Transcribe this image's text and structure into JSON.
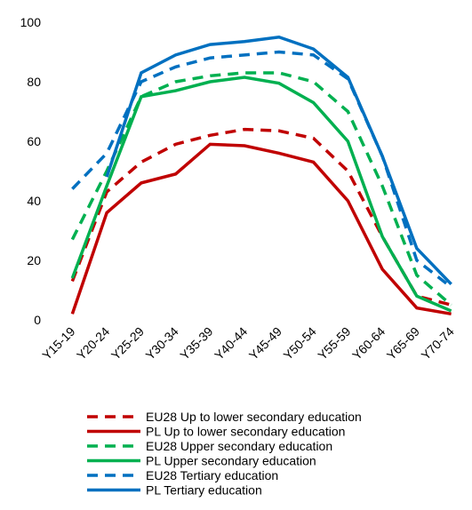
{
  "chart_data": {
    "type": "line",
    "categories": [
      "Y15-19",
      "Y20-24",
      "Y25-29",
      "Y30-34",
      "Y35-39",
      "Y40-44",
      "Y45-49",
      "Y50-54",
      "Y55-59",
      "Y60-64",
      "Y65-69",
      "Y70-74"
    ],
    "ylim": [
      0,
      100
    ],
    "yticks": [
      0,
      20,
      40,
      60,
      80,
      100
    ],
    "grid": false,
    "series": [
      {
        "name": "EU28 Up to lower secondary education",
        "color": "#c00000",
        "dashed": true,
        "values": [
          13,
          43,
          53,
          59,
          62,
          64,
          63.5,
          61,
          50,
          28,
          8,
          5
        ]
      },
      {
        "name": "PL Up to lower secondary education",
        "color": "#c00000",
        "dashed": false,
        "values": [
          2,
          36,
          46,
          49,
          59,
          58.5,
          56,
          53,
          40,
          17,
          4,
          2
        ]
      },
      {
        "name": "EU28 Upper secondary education",
        "color": "#00b050",
        "dashed": true,
        "values": [
          27,
          50,
          75,
          80,
          82,
          83,
          83,
          80,
          70,
          45,
          15,
          5
        ]
      },
      {
        "name": "PL Upper secondary education",
        "color": "#00b050",
        "dashed": false,
        "values": [
          14,
          45,
          75,
          77,
          80,
          81.5,
          79.5,
          73,
          60,
          28,
          8,
          3
        ]
      },
      {
        "name": "EU28 Tertiary education",
        "color": "#0070c0",
        "dashed": true,
        "values": [
          44,
          56,
          80,
          85,
          88,
          89,
          90,
          89,
          81,
          55,
          20,
          11
        ]
      },
      {
        "name": "PL Tertiary education",
        "color": "#0070c0",
        "dashed": false,
        "values": [
          null,
          48,
          83,
          89,
          92.5,
          93.5,
          95,
          91,
          81.5,
          55,
          24,
          12
        ]
      }
    ]
  }
}
